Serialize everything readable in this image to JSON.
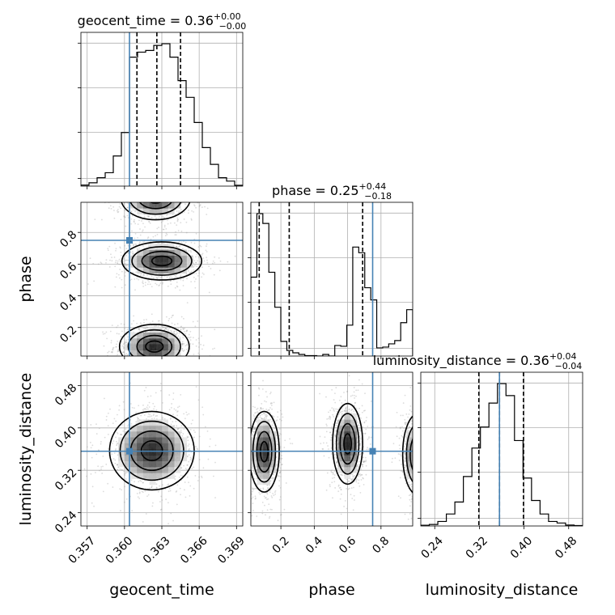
{
  "chart_data": {
    "type": "corner",
    "parameters": [
      {
        "key": "geocent_time",
        "label": "geocent_time",
        "range": [
          0.3565,
          0.3695
        ],
        "ticks": [
          0.357,
          0.36,
          0.363,
          0.366,
          0.369
        ],
        "tick_labels": [
          "0.357",
          "0.360",
          "0.363",
          "0.366",
          "0.369"
        ],
        "truth": 0.3604,
        "quantiles": [
          0.361,
          0.3626,
          0.3645
        ],
        "title_text": "geocent_time = 0.36",
        "title_sup": "+0.00",
        "title_sub": "−0.00",
        "hist": [
          0.6,
          2,
          5,
          8,
          18,
          32,
          77,
          80,
          81,
          84,
          85,
          77,
          63,
          53,
          38,
          23,
          13,
          5,
          3,
          0.5
        ]
      },
      {
        "key": "phase",
        "label": "phase",
        "range": [
          0.02,
          0.99
        ],
        "ticks": [
          0.2,
          0.4,
          0.6,
          0.8
        ],
        "tick_labels": [
          "0.2",
          "0.4",
          "0.6",
          "0.8"
        ],
        "truth": 0.75,
        "quantiles": [
          0.07,
          0.25,
          0.69
        ],
        "title_text": "phase = 0.25",
        "title_sup": "+0.44",
        "title_sub": "−0.18",
        "hist": [
          97,
          175,
          163,
          103,
          60,
          18,
          7,
          4,
          2,
          0.5,
          0.5,
          0,
          2,
          0,
          13,
          12,
          38,
          134,
          127,
          84,
          69,
          10,
          11,
          15,
          19,
          41,
          57
        ]
      },
      {
        "key": "luminosity_distance",
        "label": "luminosity_distance",
        "range": [
          0.215,
          0.505
        ],
        "ticks": [
          0.24,
          0.32,
          0.4,
          0.48
        ],
        "tick_labels": [
          "0.24",
          "0.32",
          "0.40",
          "0.48"
        ],
        "truth": 0.356,
        "quantiles": [
          0.319,
          0.356,
          0.399
        ],
        "title_text": "luminosity_distance = 0.36",
        "title_sup": "+0.04",
        "title_sub": "−0.04",
        "hist": [
          0.5,
          1,
          3,
          8,
          16,
          33,
          52,
          66,
          82,
          95,
          87,
          57,
          32,
          17,
          8,
          3,
          2,
          0.6,
          0.3
        ]
      }
    ],
    "contours_2d": [
      {
        "x": "geocent_time",
        "y": "phase",
        "modes": [
          {
            "center": [
              0.3624,
              0.08
            ],
            "sigma": [
              0.0014,
              0.07
            ]
          },
          {
            "center": [
              0.363,
              0.62
            ],
            "sigma": [
              0.0016,
              0.06
            ]
          },
          {
            "center": [
              0.3625,
              1.02
            ],
            "sigma": [
              0.0014,
              0.07
            ]
          }
        ]
      },
      {
        "x": "geocent_time",
        "y": "luminosity_distance",
        "modes": [
          {
            "center": [
              0.3622,
              0.357
            ],
            "sigma": [
              0.0017,
              0.037
            ]
          }
        ]
      },
      {
        "x": "phase",
        "y": "luminosity_distance",
        "modes": [
          {
            "center": [
              0.1,
              0.355
            ],
            "sigma": [
              0.045,
              0.038
            ]
          },
          {
            "center": [
              0.6,
              0.37
            ],
            "sigma": [
              0.045,
              0.038
            ]
          },
          {
            "center": [
              1.02,
              0.35
            ],
            "sigma": [
              0.045,
              0.038
            ]
          }
        ]
      }
    ],
    "grid": true,
    "truth_color": "#4682b4"
  }
}
